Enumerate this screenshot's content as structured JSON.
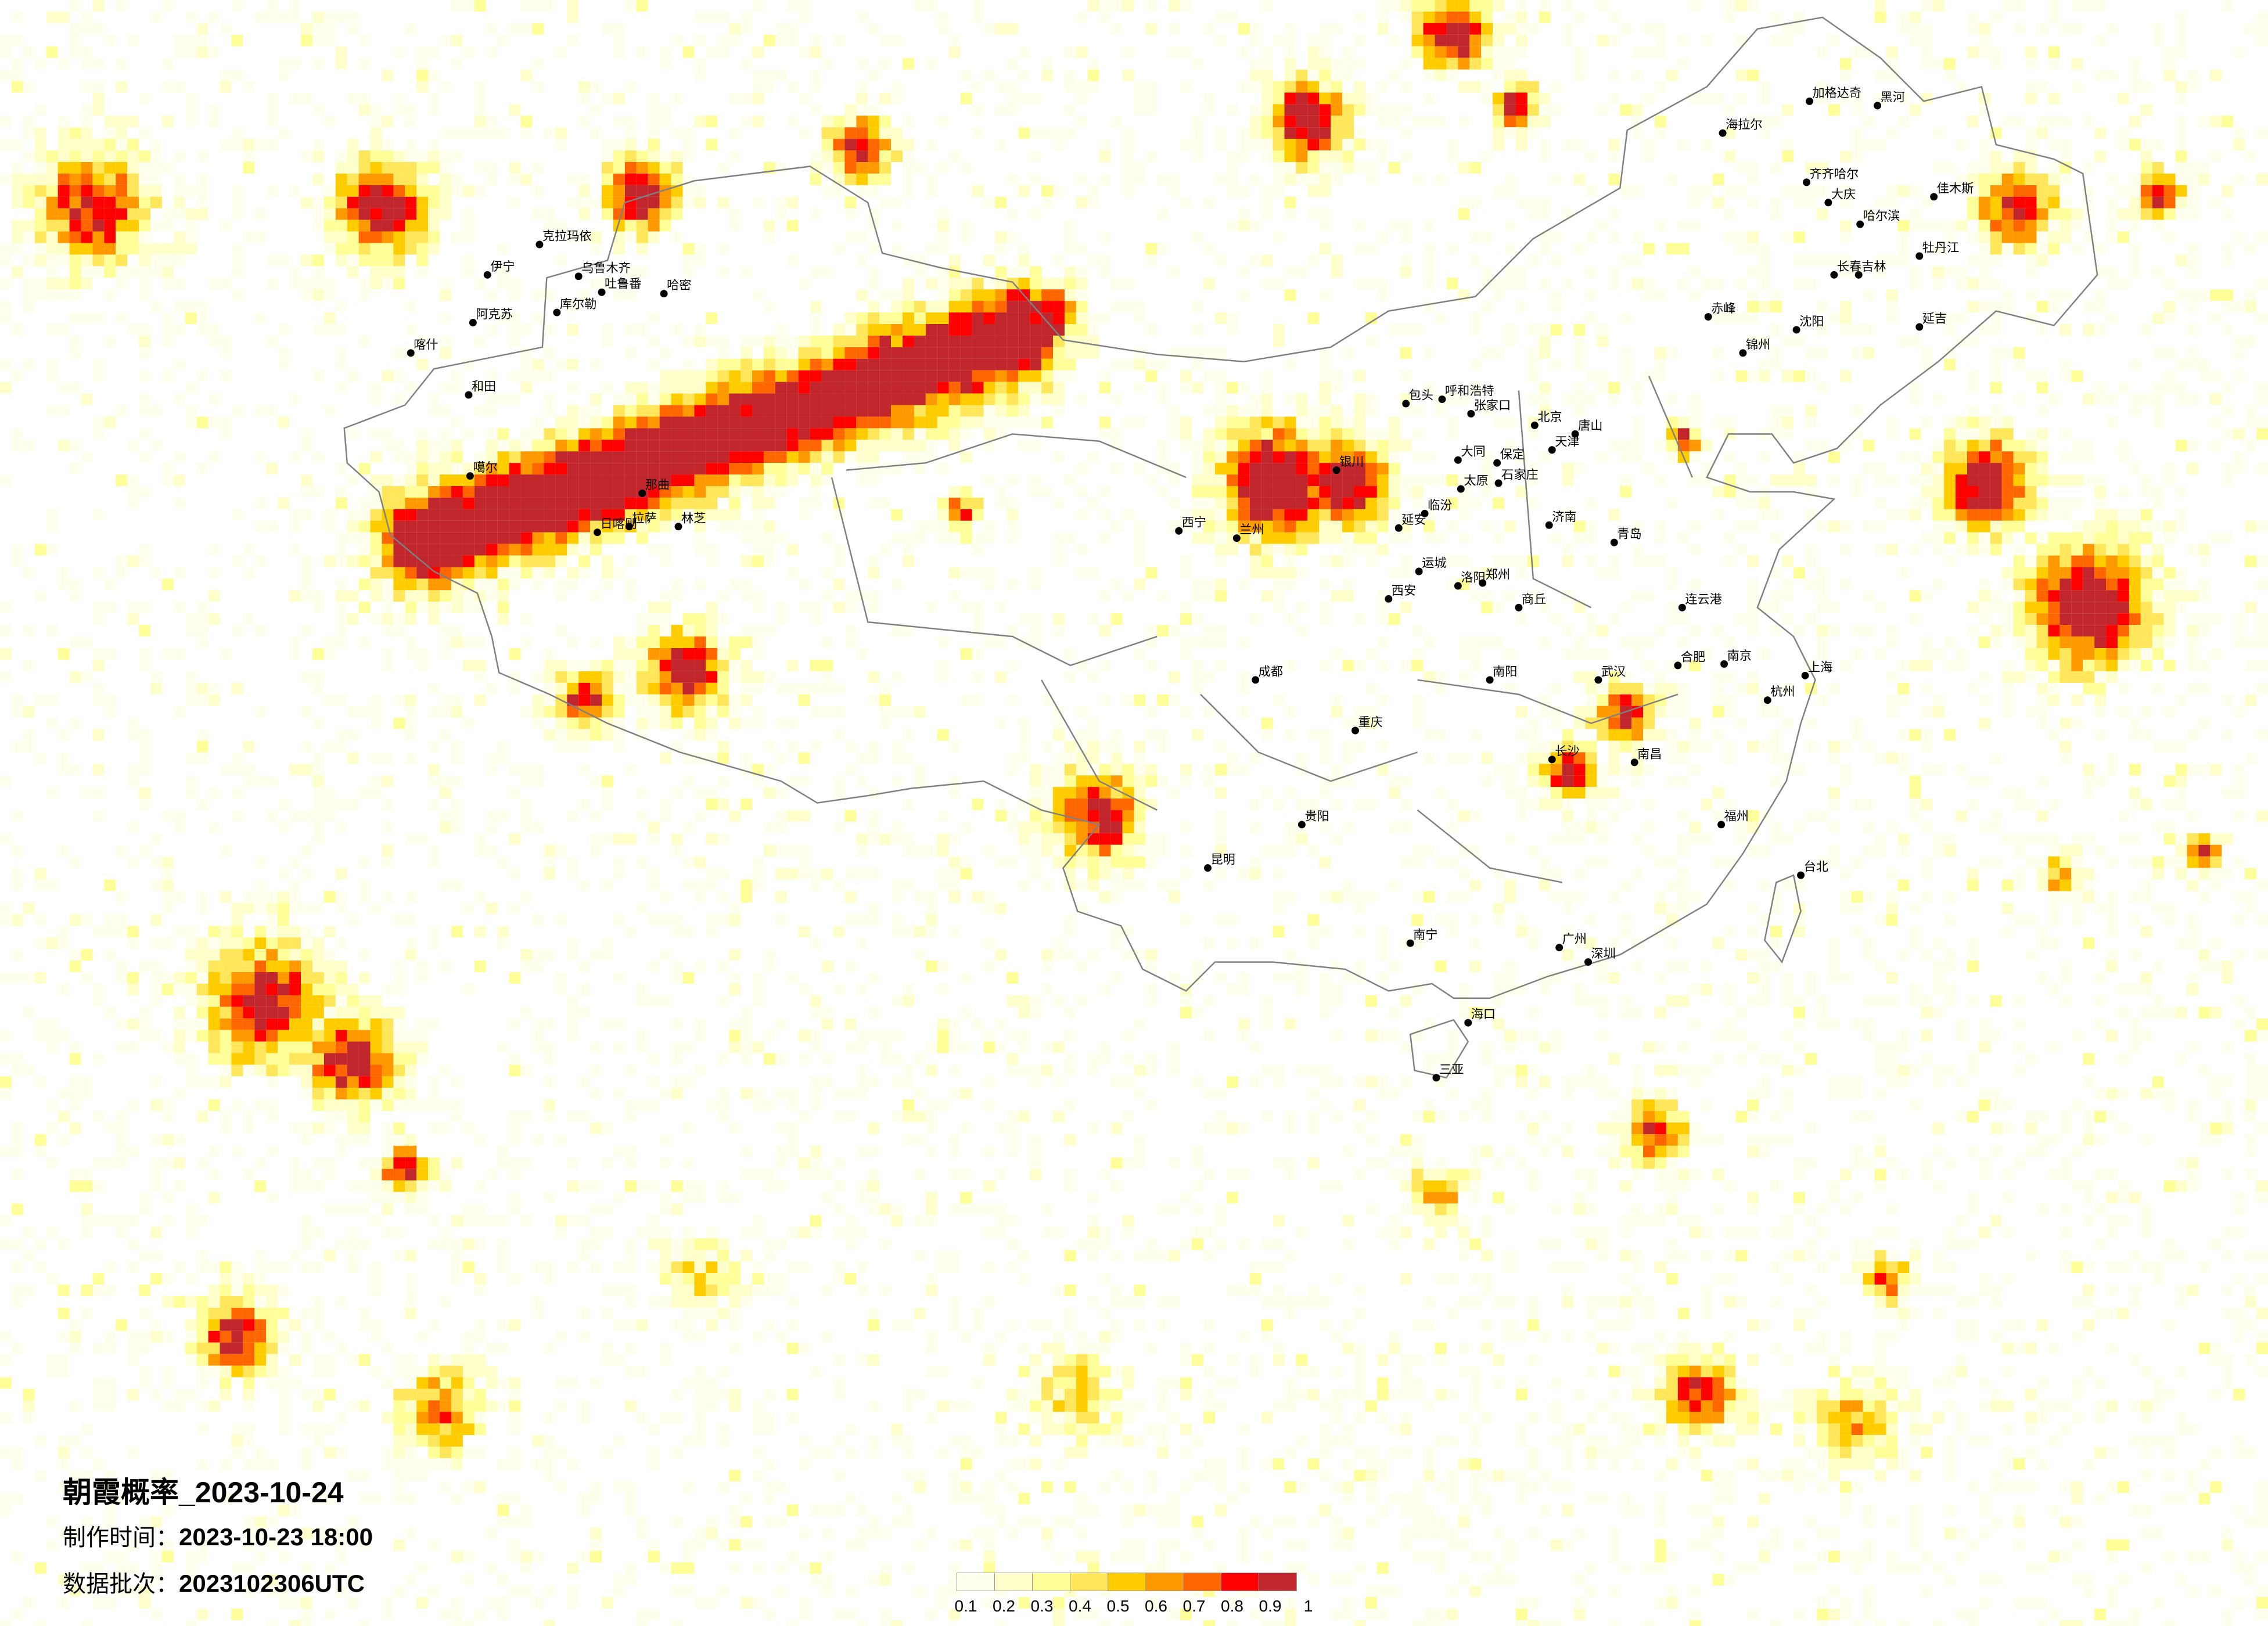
{
  "title": "朝霞概率_2023-10-24",
  "production_time_label": "制作时间：",
  "production_time": "2023-10-23 18:00",
  "data_batch_label": "数据批次：",
  "data_batch": "2023102306UTC",
  "legend": {
    "ticks": [
      "0.1",
      "0.2",
      "0.3",
      "0.4",
      "0.5",
      "0.6",
      "0.7",
      "0.8",
      "0.9",
      "1"
    ],
    "colors": [
      "#FFFFEE",
      "#FFFFCC",
      "#FFFF99",
      "#FFE65A",
      "#FFCC00",
      "#FF9900",
      "#FF6600",
      "#FF0000",
      "#C0262C"
    ]
  },
  "map": {
    "border_color": "#808080",
    "point_color": "#000000",
    "cities": [
      "北京",
      "天津",
      "石家庄",
      "太原",
      "郑州",
      "济南",
      "西安",
      "呼和浩特",
      "青岛",
      "洛阳",
      "包头",
      "银川",
      "延安",
      "哈尔滨",
      "长春",
      "沈阳",
      "齐齐哈尔",
      "大庆",
      "黑河",
      "海拉尔",
      "加格达奇",
      "佳木斯",
      "牡丹江",
      "吉林",
      "赤峰",
      "乌鲁木齐",
      "和田",
      "拉萨",
      "喀什",
      "克拉玛依",
      "伊宁",
      "哈密",
      "库尔勒",
      "阿克苏",
      "噶尔",
      "日喀则",
      "林芝",
      "那曲",
      "吐鲁番",
      "上海",
      "南京",
      "杭州",
      "武汉",
      "长沙",
      "广州",
      "深圳",
      "重庆",
      "成都",
      "昆明",
      "贵阳",
      "南宁",
      "海口",
      "三亚",
      "福州",
      "台北",
      "南昌",
      "合肥",
      "西宁",
      "兰州",
      "张家口",
      "大同",
      "唐山",
      "保定",
      "临汾",
      "运城",
      "南阳",
      "商丘",
      "连云港",
      "延吉",
      "锦州"
    ]
  }
}
